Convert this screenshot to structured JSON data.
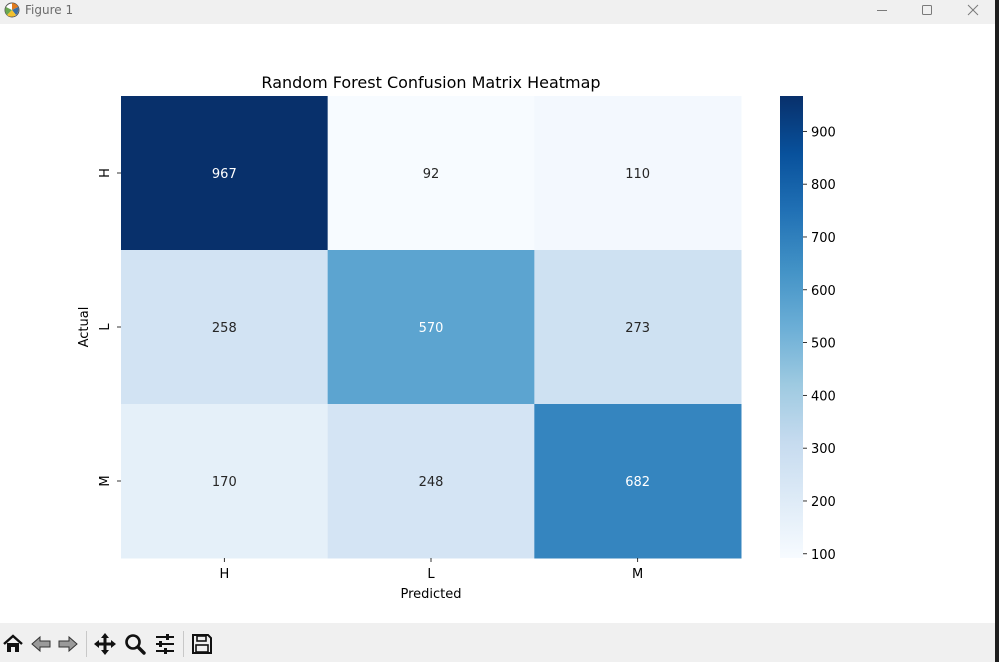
{
  "window": {
    "title": "Figure 1"
  },
  "toolbar": {
    "buttons": [
      {
        "name": "home-icon"
      },
      {
        "name": "back-arrow-icon"
      },
      {
        "name": "forward-arrow-icon"
      },
      {
        "name": "pan-icon"
      },
      {
        "name": "zoom-icon"
      },
      {
        "name": "configure-subplots-icon"
      },
      {
        "name": "save-icon"
      }
    ]
  },
  "chart_data": {
    "type": "heatmap",
    "title": "Random Forest Confusion Matrix Heatmap",
    "xlabel": "Predicted",
    "ylabel": "Actual",
    "x_categories": [
      "H",
      "L",
      "M"
    ],
    "y_categories": [
      "H",
      "L",
      "M"
    ],
    "values": [
      [
        967,
        92,
        110
      ],
      [
        258,
        570,
        273
      ],
      [
        170,
        248,
        682
      ]
    ],
    "colormap": "Blues",
    "colorbar": {
      "range": [
        92,
        967
      ],
      "ticks": [
        100,
        200,
        300,
        400,
        500,
        600,
        700,
        800,
        900
      ]
    },
    "annotations": true,
    "grid": false
  }
}
